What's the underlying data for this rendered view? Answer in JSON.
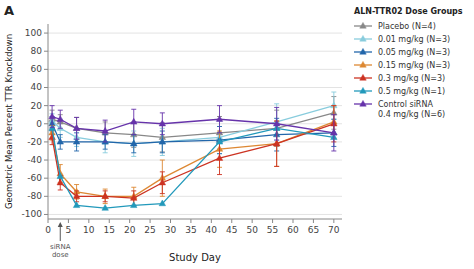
{
  "chart_data": {
    "type": "line",
    "title": "A",
    "x_label": "Study Day",
    "y_label": "Geometric Mean Percent TTR Knockdown",
    "legend_title": "ALN-TTR02 Dose Groups",
    "xlim": [
      0,
      72
    ],
    "ylim": [
      -105,
      110
    ],
    "xticks": [
      0,
      5,
      10,
      15,
      20,
      25,
      30,
      35,
      40,
      45,
      50,
      55,
      60,
      65,
      70
    ],
    "yticks": [
      -100,
      -80,
      -60,
      -40,
      -20,
      0,
      20,
      40,
      60,
      80,
      100
    ],
    "grid": "y",
    "marker": "triangle",
    "legend": "right",
    "x": [
      1,
      3,
      7,
      14,
      21,
      28,
      42,
      56,
      70
    ],
    "series": [
      {
        "name": "Placebo (N=4)",
        "color": "#888888",
        "values": [
          5,
          2,
          -5,
          -10,
          -12,
          -15,
          -10,
          -5,
          12
        ],
        "yerr": [
          10,
          8,
          12,
          12,
          14,
          16,
          18,
          20,
          18
        ]
      },
      {
        "name": "0.01 mg/kg (N=3)",
        "color": "#88ccdd",
        "values": [
          3,
          -5,
          -15,
          -20,
          -22,
          -20,
          -15,
          2,
          20
        ],
        "yerr": [
          8,
          10,
          10,
          12,
          14,
          15,
          18,
          20,
          15
        ]
      },
      {
        "name": "0.05 mg/kg (N=3)",
        "color": "#2266aa",
        "values": [
          0,
          -20,
          -20,
          -20,
          -22,
          -20,
          -18,
          -12,
          -10
        ],
        "yerr": [
          8,
          8,
          10,
          8,
          10,
          12,
          15,
          18,
          15
        ]
      },
      {
        "name": "0.15 mg/kg (N=3)",
        "color": "#dd8833",
        "values": [
          -10,
          -55,
          -75,
          -80,
          -80,
          -60,
          -28,
          -22,
          2
        ],
        "yerr": [
          8,
          10,
          8,
          8,
          10,
          20,
          20,
          25,
          18
        ]
      },
      {
        "name": "0.3 mg/kg (N=3)",
        "color": "#cc3322",
        "values": [
          -15,
          -65,
          -80,
          -80,
          -82,
          -65,
          -38,
          -22,
          0
        ],
        "yerr": [
          8,
          8,
          6,
          6,
          8,
          12,
          18,
          25,
          20
        ]
      },
      {
        "name": "0.5 mg/kg (N=1)",
        "color": "#2299bb",
        "values": [
          -5,
          -58,
          -90,
          -93,
          -90,
          -88,
          -20,
          -5,
          -15
        ]
      },
      {
        "name": "Control siRNA\n0.4 mg/kg (N=6)",
        "color": "#6633aa",
        "values": [
          8,
          5,
          -5,
          -8,
          2,
          0,
          5,
          0,
          -10
        ],
        "yerr": [
          12,
          10,
          12,
          12,
          14,
          12,
          15,
          18,
          20
        ]
      }
    ],
    "annotations": [
      {
        "text": "siRNA\ndose",
        "x": 3
      }
    ]
  }
}
